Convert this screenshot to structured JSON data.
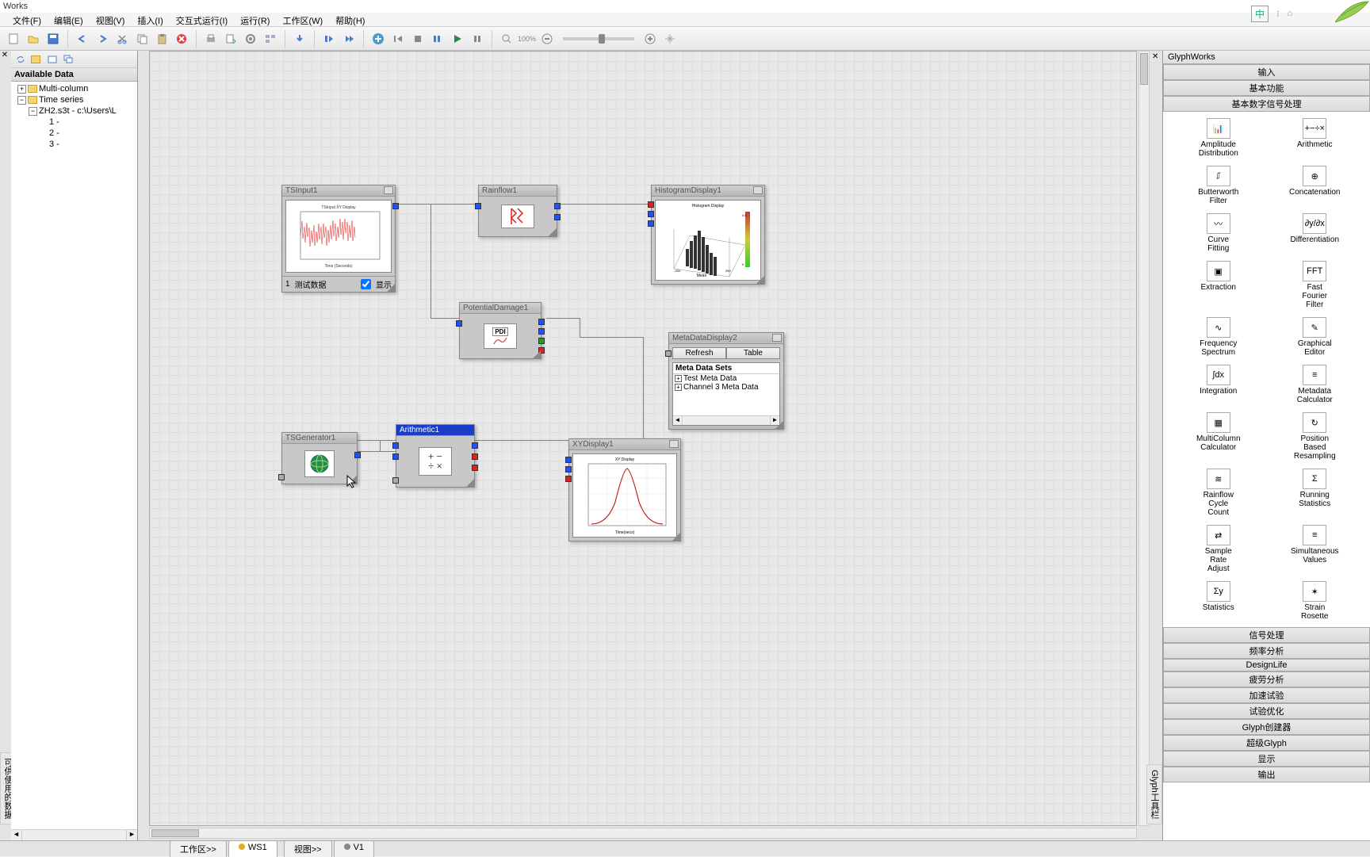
{
  "window": {
    "title": "Works"
  },
  "menu": [
    "文件(F)",
    "编辑(E)",
    "视图(V)",
    "插入(I)",
    "交互式运行(I)",
    "运行(R)",
    "工作区(W)",
    "帮助(H)"
  ],
  "ime": {
    "lang": "中"
  },
  "left": {
    "header": "Available Data",
    "tree": {
      "multicol": "Multi-column",
      "timeseries": "Time series",
      "file": "ZH2.s3t - c:\\Users\\L",
      "ch1": "1 -",
      "ch2": "2 -",
      "ch3": "3 -"
    },
    "sideLabel": "可供使用的数据"
  },
  "canvas": {
    "nodes": {
      "tsinput": {
        "title": "TSInput1",
        "footLabel": "测试数据",
        "footChk": "显示",
        "chartTitle": "TSInput XY Display",
        "xlabel": "Time (Seconds)"
      },
      "rainflow": {
        "title": "Rainflow1"
      },
      "histogram": {
        "title": "HistogramDisplay1",
        "chartTitle": "Histogram Display"
      },
      "pdi": {
        "title": "PotentialDamage1",
        "badge": "PDI"
      },
      "metadata": {
        "title": "MetaDataDisplay2",
        "btnRefresh": "Refresh",
        "btnTable": "Table",
        "setsHeader": "Meta Data Sets",
        "set1": "Test Meta Data",
        "set2": "Channel 3 Meta Data"
      },
      "tsgen": {
        "title": "TSGenerator1"
      },
      "arith": {
        "title": "Arithmetic1"
      },
      "xydisp": {
        "title": "XYDisplay1",
        "chartTitle": "XY Display",
        "xlabel": "Time(secs)"
      }
    }
  },
  "right": {
    "title": "GlyphWorks",
    "sections": {
      "input": "输入",
      "basic": "基本功能",
      "dsp": "基本数字信号处理"
    },
    "tools": [
      {
        "label": "Amplitude Distribution",
        "icon": "📊"
      },
      {
        "label": "Arithmetic",
        "icon": "+−÷×"
      },
      {
        "label": "Butterworth Filter",
        "icon": "⎎"
      },
      {
        "label": "Concatenation",
        "icon": "⊕"
      },
      {
        "label": "Curve Fitting",
        "icon": "〰"
      },
      {
        "label": "Differentiation",
        "icon": "∂y/∂x"
      },
      {
        "label": "Extraction",
        "icon": "▣"
      },
      {
        "label": "Fast Fourier Filter",
        "icon": "FFT"
      },
      {
        "label": "Frequency Spectrum",
        "icon": "∿"
      },
      {
        "label": "Graphical Editor",
        "icon": "✎"
      },
      {
        "label": "Integration",
        "icon": "∫dx"
      },
      {
        "label": "Metadata Calculator",
        "icon": "≡"
      },
      {
        "label": "MultiColumn Calculator",
        "icon": "▦"
      },
      {
        "label": "Position Based Resampling",
        "icon": "↻"
      },
      {
        "label": "Rainflow Cycle Count",
        "icon": "≋"
      },
      {
        "label": "Running Statistics",
        "icon": "Σ"
      },
      {
        "label": "Sample Rate Adjust",
        "icon": "⇄"
      },
      {
        "label": "Simultaneous Values",
        "icon": "≡"
      },
      {
        "label": "Statistics",
        "icon": "Σy"
      },
      {
        "label": "Strain Rosette",
        "icon": "✶"
      }
    ],
    "moreSections": [
      "信号处理",
      "频率分析",
      "DesignLife",
      "疲劳分析",
      "加速试验",
      "试验优化",
      "Glyph创建器",
      "超级Glyph",
      "显示",
      "输出"
    ],
    "sideLabel": "Glyph工具栏"
  },
  "tabs": {
    "ws": "工作区>>",
    "ws1": "WS1",
    "view": "视图>>",
    "v1": "V1"
  },
  "colors": {
    "accent": "#1a3cc8",
    "portBlue": "#2050ff",
    "portRed": "#e02020",
    "portGreen": "#20a020",
    "nodeBg": "#c8c8c8",
    "canvasBg": "#e8e8e8",
    "wire": "#808080"
  }
}
